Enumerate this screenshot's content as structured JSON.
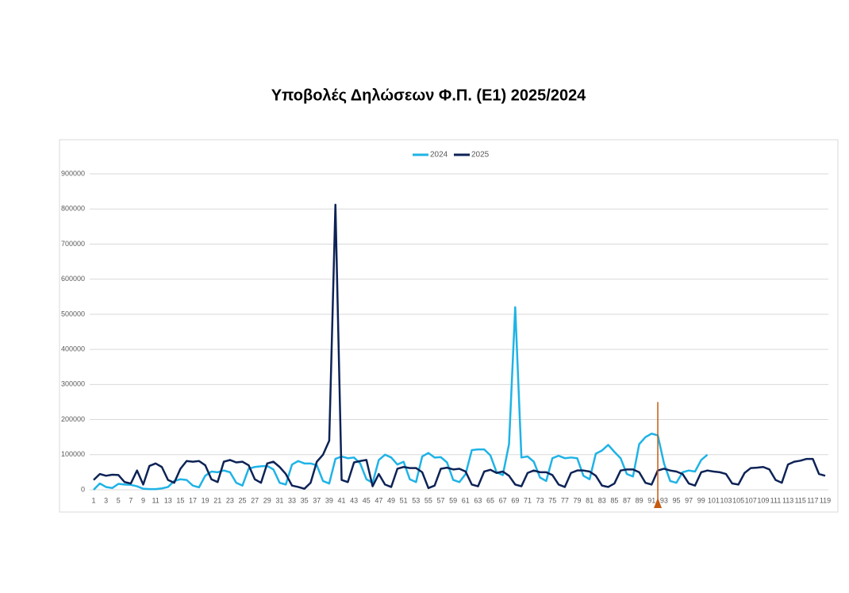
{
  "chart_data": {
    "type": "line",
    "title": "Υποβολές Δηλώσεων Φ.Π. (Ε1) 2025/2024",
    "categories": [
      1,
      null,
      3,
      null,
      5,
      null,
      7,
      null,
      9,
      null,
      11,
      null,
      13,
      null,
      15,
      null,
      17,
      null,
      19,
      null,
      21,
      null,
      23,
      null,
      25,
      null,
      27,
      null,
      29,
      null,
      31,
      null,
      33,
      null,
      35,
      null,
      37,
      null,
      39,
      null,
      41,
      null,
      43,
      null,
      45,
      null,
      47,
      null,
      49,
      null,
      51,
      null,
      53,
      null,
      55,
      null,
      57,
      null,
      59,
      null,
      61,
      null,
      63,
      null,
      65,
      null,
      67,
      null,
      69,
      null,
      71,
      null,
      73,
      null,
      75,
      null,
      77,
      null,
      79,
      null,
      81,
      null,
      83,
      null,
      85,
      null,
      87,
      null,
      89,
      null,
      91,
      null,
      93,
      null,
      95,
      null,
      97,
      null,
      99,
      null,
      101,
      null,
      103,
      null,
      105,
      null,
      107,
      null,
      109,
      null,
      111,
      null,
      113,
      null,
      115,
      null,
      117,
      null,
      119
    ],
    "series": [
      {
        "name": "2024",
        "color": "#1fb3e6",
        "values": [
          0,
          18000,
          8000,
          5000,
          17000,
          15000,
          14000,
          10000,
          3000,
          2000,
          2000,
          4000,
          8000,
          25000,
          30000,
          28000,
          12000,
          7000,
          40000,
          52000,
          50000,
          55000,
          50000,
          20000,
          12000,
          60000,
          65000,
          67000,
          68000,
          58000,
          20000,
          15000,
          72000,
          82000,
          75000,
          75000,
          70000,
          25000,
          18000,
          88000,
          95000,
          90000,
          92000,
          75000,
          30000,
          20000,
          85000,
          100000,
          92000,
          72000,
          80000,
          30000,
          22000,
          95000,
          105000,
          92000,
          93000,
          78000,
          28000,
          22000,
          45000,
          113000,
          115000,
          115000,
          98000,
          50000,
          42000,
          130000,
          520000,
          92000,
          95000,
          80000,
          35000,
          25000,
          90000,
          97000,
          90000,
          92000,
          90000,
          40000,
          30000,
          103000,
          112000,
          128000,
          108000,
          90000,
          45000,
          38000,
          130000,
          150000,
          160000,
          155000,
          75000,
          25000,
          20000,
          50000,
          55000,
          52000,
          85000,
          100000,
          null,
          null,
          null,
          null,
          null,
          null,
          null,
          null,
          null,
          null,
          null,
          null,
          null,
          null,
          null,
          null,
          null,
          null,
          null
        ]
      },
      {
        "name": "2025",
        "color": "#0d2356",
        "values": [
          28000,
          45000,
          40000,
          43000,
          42000,
          22000,
          18000,
          55000,
          15000,
          68000,
          75000,
          65000,
          28000,
          20000,
          60000,
          82000,
          80000,
          82000,
          70000,
          30000,
          22000,
          80000,
          85000,
          78000,
          80000,
          70000,
          30000,
          20000,
          75000,
          80000,
          65000,
          45000,
          12000,
          8000,
          3000,
          20000,
          80000,
          100000,
          140000,
          812000,
          28000,
          22000,
          78000,
          82000,
          85000,
          10000,
          45000,
          15000,
          8000,
          60000,
          65000,
          62000,
          62000,
          50000,
          5000,
          12000,
          60000,
          63000,
          58000,
          60000,
          52000,
          15000,
          10000,
          52000,
          57000,
          48000,
          52000,
          40000,
          15000,
          10000,
          48000,
          55000,
          50000,
          50000,
          42000,
          15000,
          8000,
          48000,
          55000,
          55000,
          52000,
          40000,
          12000,
          8000,
          18000,
          55000,
          58000,
          58000,
          50000,
          20000,
          15000,
          55000,
          60000,
          55000,
          52000,
          45000,
          18000,
          12000,
          50000,
          55000,
          52000,
          50000,
          45000,
          18000,
          15000,
          48000,
          62000,
          63000,
          65000,
          58000,
          28000,
          20000,
          72000,
          80000,
          83000,
          88000,
          88000,
          45000,
          40000
        ]
      }
    ],
    "ylim": [
      0,
      900000
    ],
    "yticks": [
      0,
      100000,
      200000,
      300000,
      400000,
      500000,
      600000,
      700000,
      800000,
      900000
    ],
    "grid": true,
    "legend": "top",
    "marker_line": {
      "x": 92,
      "y_top": 250000,
      "color": "#c55a11"
    }
  }
}
